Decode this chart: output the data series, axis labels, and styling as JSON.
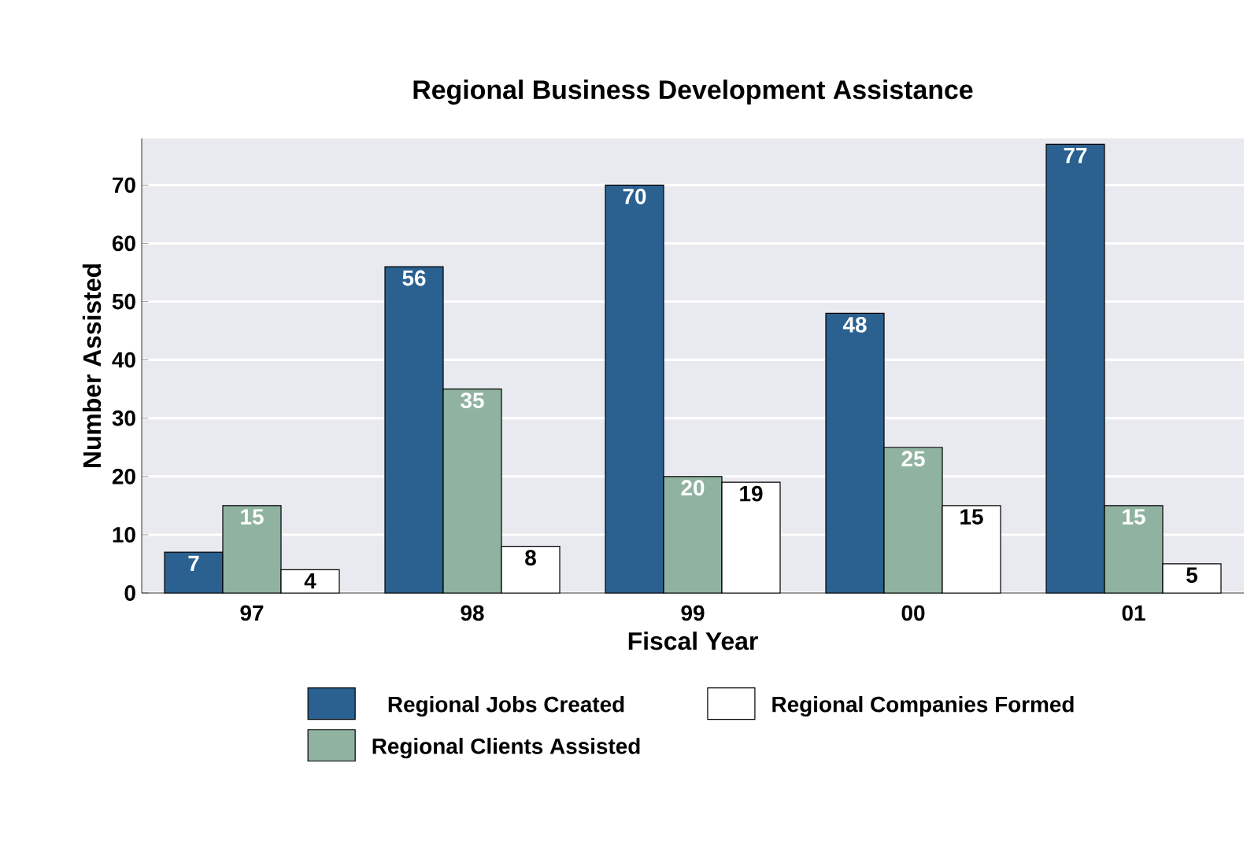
{
  "chart_data": {
    "type": "bar",
    "title": "Regional Business Development Assistance",
    "xlabel": "Fiscal Year",
    "ylabel": "Number Assisted",
    "categories": [
      "97",
      "98",
      "99",
      "00",
      "01"
    ],
    "series": [
      {
        "name": "Regional Jobs Created",
        "color": "#2a6190",
        "values": [
          7,
          56,
          70,
          48,
          77
        ]
      },
      {
        "name": "Regional Clients Assisted",
        "color": "#8fb3a0",
        "values": [
          15,
          35,
          20,
          25,
          15
        ]
      },
      {
        "name": "Regional Companies Formed",
        "color": "#ffffff",
        "values": [
          4,
          8,
          19,
          15,
          5
        ]
      }
    ],
    "ylim": [
      0,
      78
    ],
    "yticks": [
      0,
      10,
      20,
      30,
      40,
      50,
      60,
      70
    ],
    "grid": "y",
    "legend": "bottom",
    "data_labels": true
  }
}
